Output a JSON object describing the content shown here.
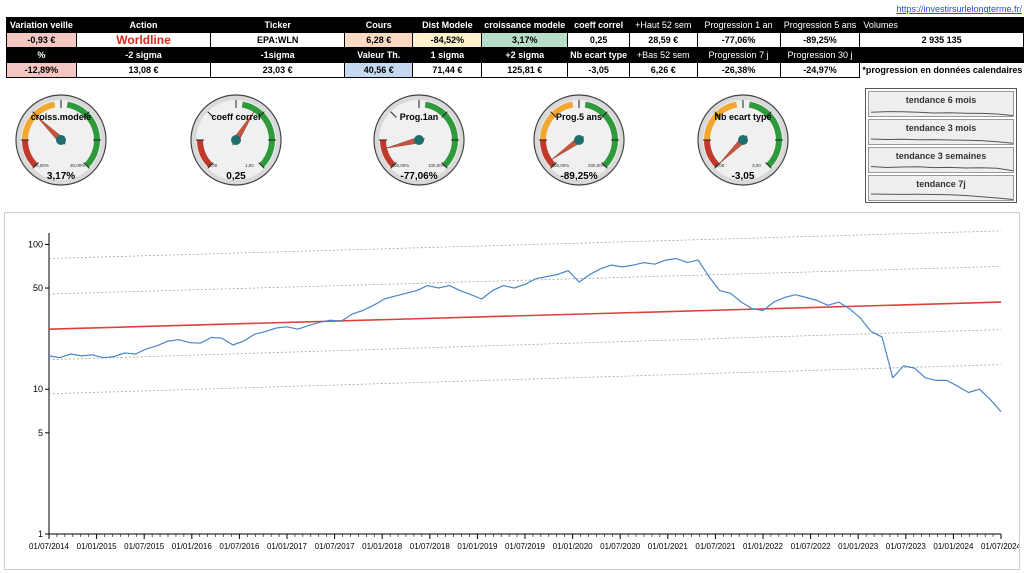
{
  "site_link": "https://investirsurlelongterme.fr/",
  "table": {
    "header1": [
      "Variation veille",
      "Action",
      "Ticker",
      "Cours",
      "Dist Modele",
      "croissance modele",
      "coeff correl",
      "+Haut 52 sem",
      "Progression 1 an",
      "Progression 5 ans",
      "Volumes"
    ],
    "row1": [
      "-0,93 €",
      "Worldline",
      "EPA:WLN",
      "6,28 €",
      "-84,52%",
      "3,17%",
      "0,25",
      "28,59 €",
      "-77,06%",
      "-89,25%",
      "2 935 135"
    ],
    "header2": [
      "%",
      "-2 sigma",
      "-1sigma",
      "Valeur Th.",
      "1 sigma",
      "+2 sigma",
      "Nb ecart type",
      "+Bas 52 sem",
      "Progression 7 j",
      "Progression 30 j"
    ],
    "row2": [
      "-12,89%",
      "13,08 €",
      "23,03 €",
      "40,56 €",
      "71,44 €",
      "125,81 €",
      "-3,05",
      "6,26 €",
      "-26,38%",
      "-24,97%"
    ],
    "note": "*progression en données calendaires"
  },
  "gauges": [
    {
      "label": "croiss.modele",
      "min": "-10,00%",
      "max": "30,00%",
      "value": "3,17%",
      "fraction": 0.33,
      "orange": true
    },
    {
      "label": "coeff correl",
      "min": "-1,00",
      "max": "1,00",
      "value": "0,25",
      "fraction": 0.62,
      "orange": false
    },
    {
      "label": "Prog.1an",
      "min": "-100,00%",
      "max": "100,00%",
      "value": "-77,06%",
      "fraction": 0.115,
      "orange": false
    },
    {
      "label": "Prog.5 ans",
      "min": "-100,00%",
      "max": "200,00%",
      "value": "-89,25%",
      "fraction": 0.035,
      "orange": true
    },
    {
      "label": "Nb ecart type",
      "min": "-3,00",
      "max": "3,00",
      "value": "-3,05",
      "fraction": 0.0,
      "orange": true
    }
  ],
  "trends": [
    {
      "label": "tendance 6 mois",
      "points": [
        0.62,
        0.56,
        0.58,
        0.62,
        0.7,
        0.68,
        0.72,
        0.74,
        0.8,
        0.95
      ]
    },
    {
      "label": "tendance 3 mois",
      "points": [
        0.5,
        0.55,
        0.53,
        0.58,
        0.56,
        0.6,
        0.62,
        0.66,
        0.78,
        0.92
      ]
    },
    {
      "label": "tendance 3 semaines",
      "points": [
        0.45,
        0.55,
        0.5,
        0.48,
        0.56,
        0.54,
        0.6,
        0.58,
        0.62,
        0.88
      ]
    },
    {
      "label": "tendance 7j",
      "points": [
        0.4,
        0.42,
        0.44,
        0.43,
        0.45,
        0.47,
        0.55,
        0.68,
        0.8,
        0.95
      ]
    }
  ],
  "colors": {
    "price": "#4a86c8",
    "model": "#d8433b",
    "sigma": "#888888"
  },
  "chart_data": {
    "type": "line",
    "yscale": "log",
    "ylim": [
      1,
      120
    ],
    "yticks": [
      "1",
      "5",
      "10",
      "50",
      "100"
    ],
    "xlabels": [
      "01/07/2014",
      "01/01/2015",
      "01/07/2015",
      "01/01/2016",
      "01/07/2016",
      "01/01/2017",
      "01/07/2017",
      "01/01/2018",
      "01/07/2018",
      "01/01/2019",
      "01/07/2019",
      "01/01/2020",
      "01/07/2020",
      "01/01/2021",
      "01/07/2021",
      "01/01/2022",
      "01/07/2022",
      "01/01/2023",
      "01/07/2023",
      "01/01/2024",
      "01/07/2024"
    ],
    "series": [
      {
        "values": [
          17.0,
          16.5,
          17.5,
          17.0,
          17.3,
          16.5,
          16.8,
          17.8,
          17.5,
          19.0,
          20.0,
          21.5,
          22.0,
          21.0,
          20.8,
          22.8,
          22.5,
          20.2,
          21.5,
          24.0,
          25.0,
          26.5,
          27.0,
          26.0,
          27.5,
          29.0,
          30.0,
          29.5,
          33.0,
          35.0,
          38.0,
          42.0,
          44.0,
          46.0,
          48.0,
          52.0,
          50.0,
          52.0,
          48.0,
          45.0,
          42.0,
          48.0,
          52.0,
          50.0,
          53.0,
          58.0,
          60.0,
          62.0,
          66.0,
          55.0,
          62.0,
          68.0,
          72.0,
          70.0,
          72.0,
          75.0,
          73.0,
          78.0,
          80.0,
          75.0,
          78.0,
          60.0,
          48.0,
          46.0,
          40.0,
          36.0,
          35.0,
          40.0,
          43.0,
          45.0,
          43.0,
          41.0,
          38.0,
          40.0,
          36.0,
          31.0,
          25.0,
          23.0,
          12.0,
          14.5,
          14.0,
          12.0,
          11.5,
          11.5,
          10.5,
          9.5,
          10.0,
          8.5,
          7.0
        ]
      },
      {
        "values": [
          26.0,
          40.0
        ]
      },
      {
        "values": [
          9.3,
          14.8
        ]
      },
      {
        "values": [
          16.0,
          25.8
        ]
      },
      {
        "values": [
          45.5,
          70.5
        ]
      },
      {
        "values": [
          80.0,
          124.0
        ]
      }
    ]
  }
}
